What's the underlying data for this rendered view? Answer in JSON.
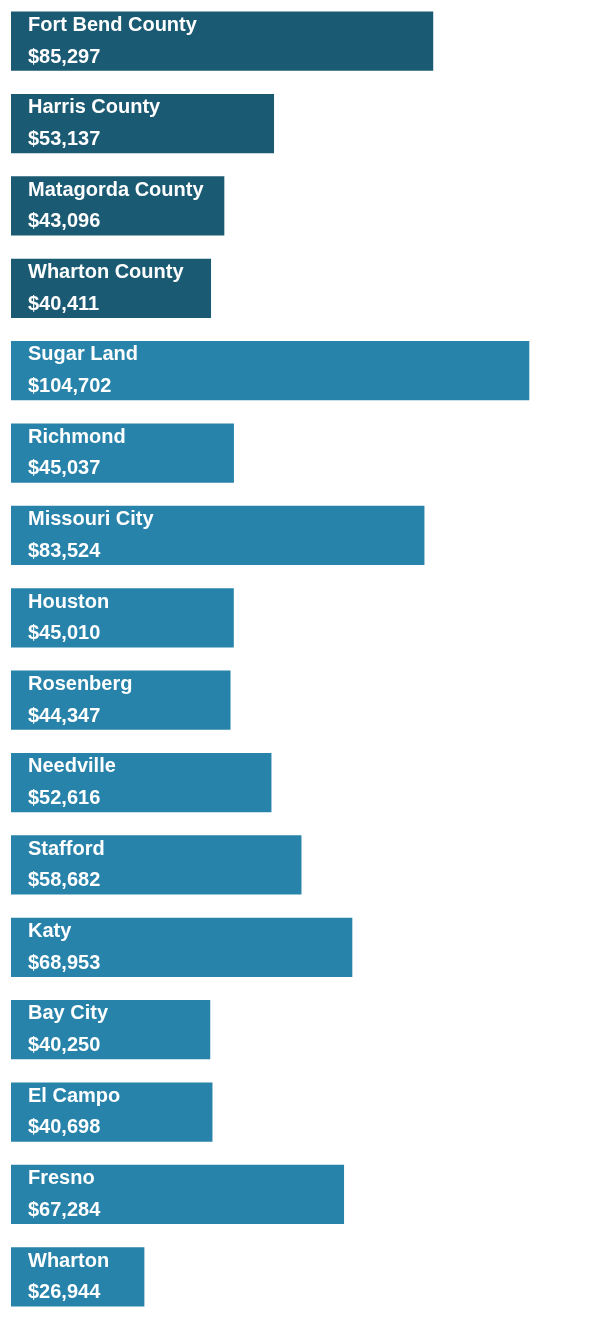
{
  "chart_data": {
    "type": "bar",
    "orientation": "horizontal",
    "categories": [
      "Fort Bend County",
      "Harris County",
      "Matagorda County",
      "Wharton County",
      "Sugar Land",
      "Richmond",
      "Missouri City",
      "Houston",
      "Rosenberg",
      "Needville",
      "Stafford",
      "Katy",
      "Bay City",
      "El Campo",
      "Fresno",
      "Wharton"
    ],
    "values": [
      85297,
      53137,
      43096,
      40411,
      104702,
      45037,
      83524,
      45010,
      44347,
      52616,
      58682,
      68953,
      40250,
      40698,
      67284,
      26944
    ],
    "value_labels": [
      "$85,297",
      "$53,137",
      "$43,096",
      "$40,411",
      "$104,702",
      "$45,037",
      "$83,524",
      "$45,010",
      "$44,347",
      "$52,616",
      "$58,682",
      "$68,953",
      "$40,250",
      "$40,698",
      "$67,284",
      "$26,944"
    ],
    "colors": [
      "#1b5a73",
      "#1b5a73",
      "#1b5a73",
      "#1b5a73",
      "#2783aa",
      "#2783aa",
      "#2783aa",
      "#2783aa",
      "#2783aa",
      "#2783aa",
      "#2783aa",
      "#2783aa",
      "#2783aa",
      "#2783aa",
      "#2783aa",
      "#2783aa"
    ],
    "legend": false,
    "grid": false,
    "tick_labels": false
  }
}
